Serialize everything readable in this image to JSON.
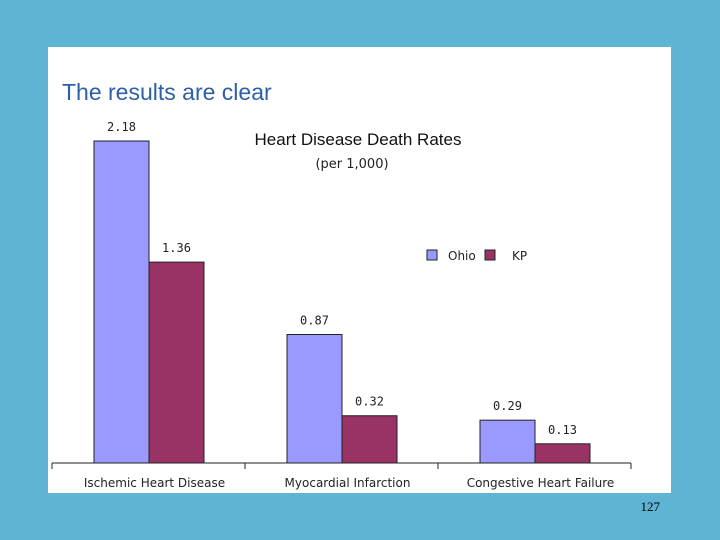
{
  "slide": {
    "title": "The results are clear",
    "page_number": "127"
  },
  "colors": {
    "background": "#5EB4D3",
    "title_text": "#2E5FA6",
    "ohio": "#9999FF",
    "kp": "#993366"
  },
  "chart_data": {
    "type": "bar",
    "title": "Heart Disease Death Rates",
    "subtitle": "(per 1,000)",
    "categories": [
      "Ischemic Heart Disease",
      "Myocardial Infarction",
      "Congestive Heart Failure"
    ],
    "series": [
      {
        "name": "Ohio",
        "values": [
          2.18,
          0.87,
          0.29
        ],
        "labels": [
          "2.18",
          "0.87",
          "0.29"
        ],
        "color": "#9999FF"
      },
      {
        "name": "KP",
        "values": [
          1.36,
          0.32,
          0.13
        ],
        "labels": [
          "1.36",
          "0.32",
          "0.13"
        ],
        "color": "#993366"
      }
    ],
    "ylim": [
      0,
      2.5
    ],
    "grid": false,
    "legend": "upper-right"
  }
}
